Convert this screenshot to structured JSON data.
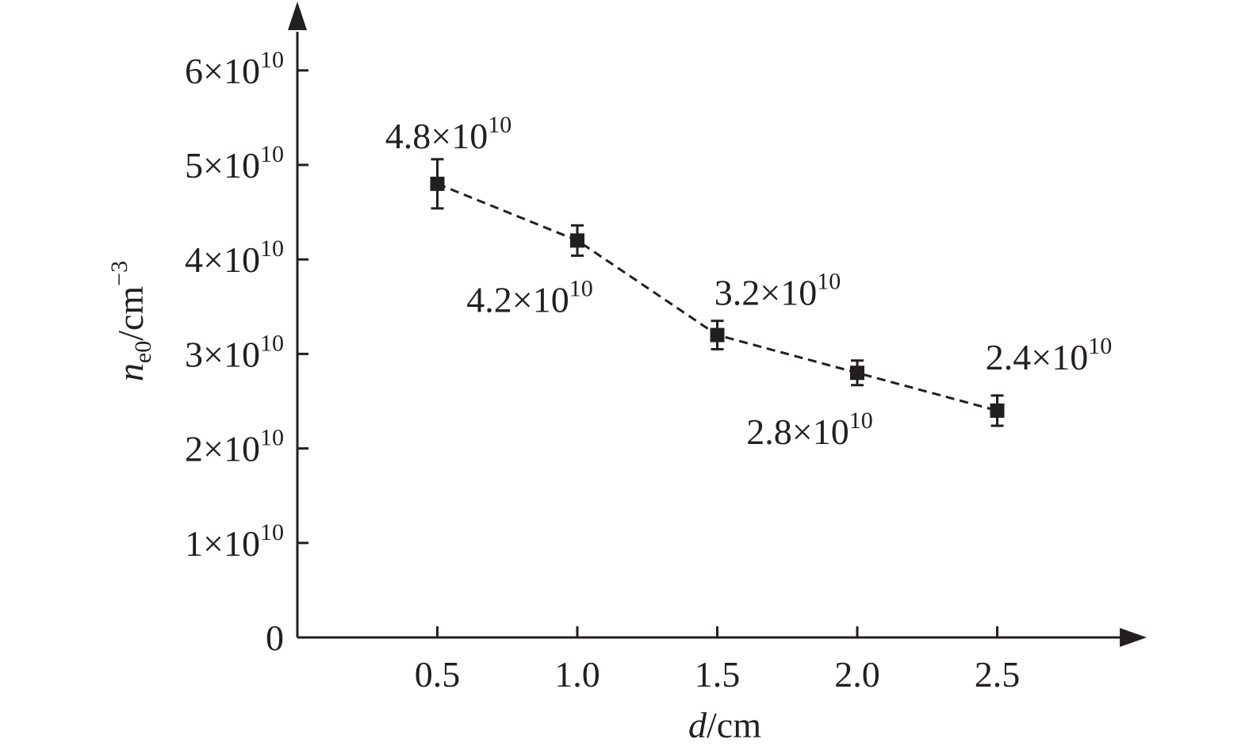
{
  "chart_data": {
    "type": "line",
    "title": "",
    "xlabel": {
      "italic": "d",
      "rest": "/cm"
    },
    "ylabel": {
      "italic": "n",
      "sub": "e0",
      "rest": "/cm",
      "sup": "−3"
    },
    "xlim": [
      0,
      2.85
    ],
    "ylim": [
      0,
      65000000000.0
    ],
    "x_ticks": [
      {
        "value": 0.5,
        "label": "0.5"
      },
      {
        "value": 1.0,
        "label": "1.0"
      },
      {
        "value": 1.5,
        "label": "1.5"
      },
      {
        "value": 2.0,
        "label": "2.0"
      },
      {
        "value": 2.5,
        "label": "2.5"
      }
    ],
    "y_ticks": [
      {
        "value": 0,
        "mant": "0",
        "exp": ""
      },
      {
        "value": 10000000000.0,
        "mant": "1×10",
        "exp": "10"
      },
      {
        "value": 20000000000.0,
        "mant": "2×10",
        "exp": "10"
      },
      {
        "value": 30000000000.0,
        "mant": "3×10",
        "exp": "10"
      },
      {
        "value": 40000000000.0,
        "mant": "4×10",
        "exp": "10"
      },
      {
        "value": 50000000000.0,
        "mant": "5×10",
        "exp": "10"
      },
      {
        "value": 60000000000.0,
        "mant": "6×10",
        "exp": "10"
      }
    ],
    "series": [
      {
        "line_style": "dashed",
        "marker": "square",
        "color": "#231f20",
        "points": [
          {
            "x": 0.5,
            "y": 48000000000.0,
            "err": 2600000000.0,
            "mant": "4.8×10",
            "exp": "10",
            "label_pos": "above-left"
          },
          {
            "x": 1.0,
            "y": 42000000000.0,
            "err": 1600000000.0,
            "mant": "4.2×10",
            "exp": "10",
            "label_pos": "below-left"
          },
          {
            "x": 1.5,
            "y": 32000000000.0,
            "err": 1500000000.0,
            "mant": "3.2×10",
            "exp": "10",
            "label_pos": "above-right"
          },
          {
            "x": 2.0,
            "y": 28000000000.0,
            "err": 1300000000.0,
            "mant": "2.8×10",
            "exp": "10",
            "label_pos": "below-left"
          },
          {
            "x": 2.5,
            "y": 24000000000.0,
            "err": 1600000000.0,
            "mant": "2.4×10",
            "exp": "10",
            "label_pos": "above"
          }
        ]
      }
    ]
  }
}
